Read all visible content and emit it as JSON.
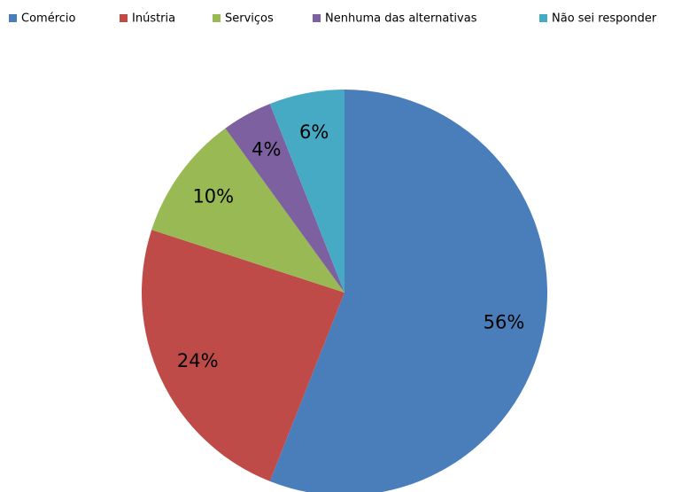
{
  "chart_data": {
    "type": "pie",
    "categories": [
      "Comércio",
      "Inústria",
      "Serviços",
      "Nenhuma das alternativas",
      "Não sei responder"
    ],
    "values": [
      56,
      24,
      10,
      4,
      6
    ],
    "value_labels": [
      "56%",
      "24%",
      "10%",
      "4%",
      "6%"
    ],
    "colors": [
      "#4a7ebb",
      "#be4b48",
      "#98b954",
      "#7d60a0",
      "#46aac5"
    ],
    "legend": "top"
  }
}
